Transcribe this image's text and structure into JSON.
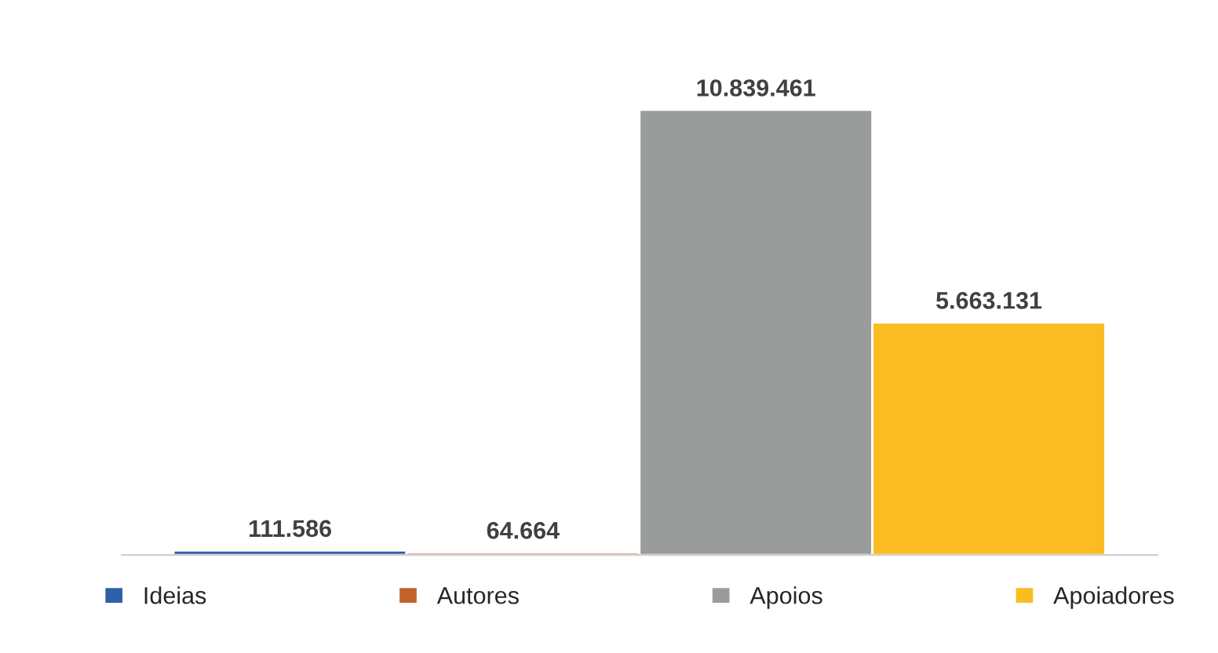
{
  "chart_data": {
    "type": "bar",
    "categories": [
      null
    ],
    "series": [
      {
        "name": "Ideias",
        "color": "#2e5fa8",
        "values": [
          111586
        ],
        "value_labels": [
          "111.586"
        ]
      },
      {
        "name": "Autores",
        "color": "#c0622a",
        "values": [
          64664
        ],
        "value_labels": [
          "64.664"
        ]
      },
      {
        "name": "Apoios",
        "color": "#9a9c9c",
        "values": [
          10839461
        ],
        "value_labels": [
          "10.839.461"
        ]
      },
      {
        "name": "Apoiadores",
        "color": "#fbbc22",
        "values": [
          5663131
        ],
        "value_labels": [
          "5.663.131"
        ]
      }
    ],
    "legend": "bottom"
  }
}
